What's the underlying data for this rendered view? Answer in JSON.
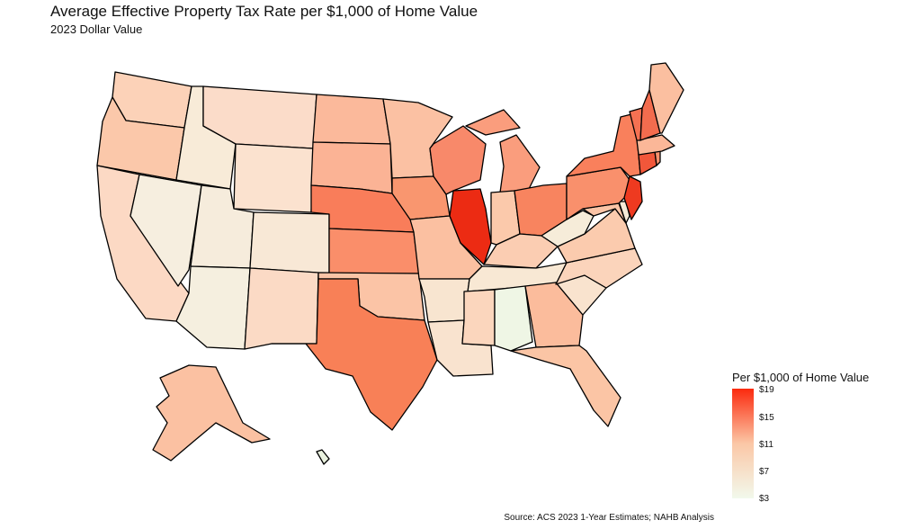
{
  "title": "Average Effective Property Tax Rate per $1,000 of Home Value",
  "subtitle": "2023 Dollar Value",
  "source": "Source: ACS 2023 1-Year Estimates; NAHB Analysis",
  "legend": {
    "title": "Per $1,000 of Home Value",
    "ticks": [
      "$19",
      "$15",
      "$11",
      "$7",
      "$3"
    ],
    "min": 3,
    "max": 19,
    "color_low": "#f2f9ec",
    "color_mid": "#fbc7a6",
    "color_high": "#fb2a0e"
  },
  "states": [
    {
      "id": "WA",
      "color": "#fcd2b8"
    },
    {
      "id": "OR",
      "color": "#fbc8aa"
    },
    {
      "id": "CA",
      "color": "#fcd9c4"
    },
    {
      "id": "ID",
      "color": "#f8ebd8"
    },
    {
      "id": "NV",
      "color": "#f6eedf"
    },
    {
      "id": "MT",
      "color": "#fbdcc9"
    },
    {
      "id": "WY",
      "color": "#fbe2cf"
    },
    {
      "id": "UT",
      "color": "#f6ecdc"
    },
    {
      "id": "AZ",
      "color": "#f5efdf"
    },
    {
      "id": "CO",
      "color": "#f8e8d6"
    },
    {
      "id": "NM",
      "color": "#fbdac5"
    },
    {
      "id": "ND",
      "color": "#fbb99b"
    },
    {
      "id": "SD",
      "color": "#fbb395"
    },
    {
      "id": "NE",
      "color": "#f97d5a"
    },
    {
      "id": "KS",
      "color": "#fa8e6a"
    },
    {
      "id": "OK",
      "color": "#fbc4a6"
    },
    {
      "id": "TX",
      "color": "#f88057"
    },
    {
      "id": "MN",
      "color": "#fbc1a3"
    },
    {
      "id": "IA",
      "color": "#f9966f"
    },
    {
      "id": "MO",
      "color": "#fbc0a1"
    },
    {
      "id": "AR",
      "color": "#f8e5d0"
    },
    {
      "id": "LA",
      "color": "#f9e3cf"
    },
    {
      "id": "WI",
      "color": "#f8896a"
    },
    {
      "id": "IL",
      "color": "#ec2b13"
    },
    {
      "id": "MI",
      "color": "#fa9d7d"
    },
    {
      "id": "IN",
      "color": "#fbc9ab"
    },
    {
      "id": "OH",
      "color": "#f8845f"
    },
    {
      "id": "KY",
      "color": "#fbcdb2"
    },
    {
      "id": "TN",
      "color": "#f8e8d4"
    },
    {
      "id": "MS",
      "color": "#fbd6bd"
    },
    {
      "id": "AL",
      "color": "#eff6e5"
    },
    {
      "id": "GA",
      "color": "#fbbc9c"
    },
    {
      "id": "FL",
      "color": "#fbc5a5"
    },
    {
      "id": "SC",
      "color": "#f9e3ce"
    },
    {
      "id": "NC",
      "color": "#fbd4bb"
    },
    {
      "id": "VA",
      "color": "#fbcbae"
    },
    {
      "id": "WV",
      "color": "#f6ecd9"
    },
    {
      "id": "PA",
      "color": "#f9906c"
    },
    {
      "id": "NY",
      "color": "#f9805c"
    },
    {
      "id": "VT",
      "color": "#f57152"
    },
    {
      "id": "NH",
      "color": "#f36c4e"
    },
    {
      "id": "ME",
      "color": "#fbbfa0"
    },
    {
      "id": "MA",
      "color": "#fbb798"
    },
    {
      "id": "RI",
      "color": "#f9906c"
    },
    {
      "id": "CT",
      "color": "#f2573a"
    },
    {
      "id": "NJ",
      "color": "#ee3a20"
    },
    {
      "id": "DE",
      "color": "#f6ebd8"
    },
    {
      "id": "MD",
      "color": "#fbc4a6"
    },
    {
      "id": "AK",
      "color": "#fbc1a2"
    },
    {
      "id": "HI",
      "color": "#eaf2df"
    }
  ]
}
